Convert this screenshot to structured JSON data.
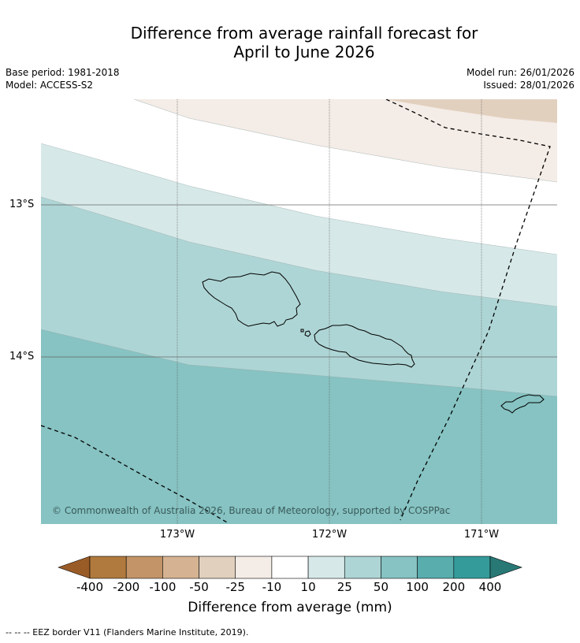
{
  "header": {
    "title_line1": "Difference from average rainfall forecast for",
    "title_line2": "April to June 2026",
    "base_period": "Base period: 1981-2018",
    "model": "Model: ACCESS-S2",
    "model_run": "Model run: 26/01/2026",
    "issued": "Issued: 28/01/2026"
  },
  "map": {
    "lat_labels": [
      "13°S",
      "14°S"
    ],
    "lon_labels": [
      "173°W",
      "172°W",
      "171°W"
    ],
    "copyright": "© Commonwealth of Australia 2026, Bureau of Meteorology, supported by COSPPac",
    "band_colors": {
      "cat_neg25_neg10": "#f4ece6",
      "cat_neg50_neg25": "#e2d0bf",
      "cat_neg10_10": "#ffffff",
      "cat_10_25": "#d6e9e8",
      "cat_25_50": "#aed5d5",
      "cat_50_100": "#86c3c2"
    },
    "border_line": "EEZ border"
  },
  "colorbar": {
    "ticks": [
      "-400",
      "-200",
      "-100",
      "-50",
      "-25",
      "-10",
      "10",
      "25",
      "50",
      "100",
      "200",
      "400"
    ],
    "colors": [
      "#9a5c27",
      "#b07a3e",
      "#c29467",
      "#d5b392",
      "#e2d0bf",
      "#f4ece6",
      "#ffffff",
      "#d6e9e8",
      "#aed5d5",
      "#86c3c2",
      "#59adad",
      "#359b9a",
      "#287876"
    ],
    "title": "Difference from average (mm)"
  },
  "footer": {
    "legend_note": "--  --  -- EEZ border V11 (Flanders Marine Institute, 2019)."
  }
}
